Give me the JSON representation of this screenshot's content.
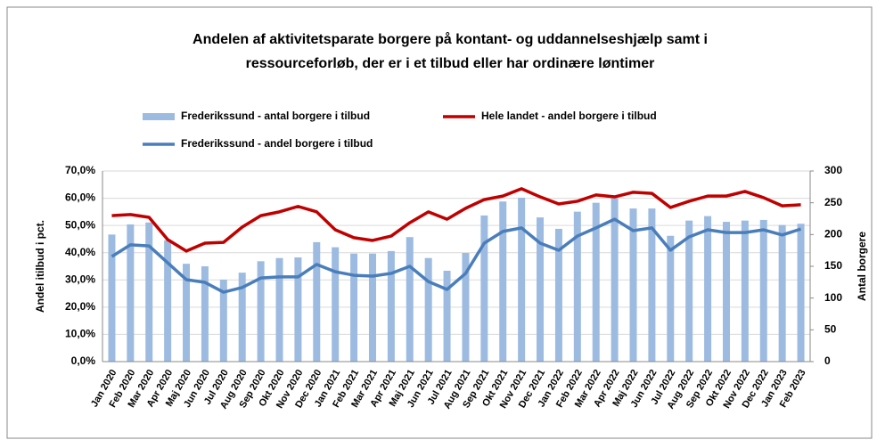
{
  "chart_data": {
    "type": "bar-line",
    "title": [
      "Andelen af aktivitetsparate borgere på kontant- og uddannelseshjælp samt i",
      "ressourceforløb, der er i et tilbud eller har ordinære løntimer"
    ],
    "ylabel": "Andel itilbud i pct.",
    "y2label": "Antal borgere",
    "categories": [
      "Jan 2020",
      "Feb 2020",
      "Mar 2020",
      "Apr 2020",
      "Maj 2020",
      "Jun 2020",
      "Jul 2020",
      "Aug 2020",
      "Sep 2020",
      "Okt 2020",
      "Nov 2020",
      "Dec 2020",
      "Jan 2021",
      "Feb 2021",
      "Mar 2021",
      "Apr 2021",
      "Maj 2021",
      "Jun 2021",
      "Jul 2021",
      "Aug 2021",
      "Sep 2021",
      "Okt 2021",
      "Nov 2021",
      "Dec 2021",
      "Jan 2022",
      "Feb 2022",
      "Mar 2022",
      "Apr 2022",
      "Maj 2022",
      "Jun 2022",
      "Jul 2022",
      "Aug 2022",
      "Sep 2022",
      "Okt 2022",
      "Nov 2022",
      "Dec 2022",
      "Jan 2023",
      "Feb 2023"
    ],
    "series": [
      {
        "name": "Frederikssund - antal borgere i tilbud",
        "type": "bar",
        "axis": "y2",
        "color": "#9dbbe0",
        "values": [
          200,
          216,
          219,
          191,
          154,
          150,
          129,
          140,
          158,
          163,
          164,
          188,
          180,
          170,
          170,
          174,
          196,
          163,
          143,
          171,
          230,
          252,
          258,
          227,
          209,
          236,
          250,
          257,
          241,
          241,
          198,
          222,
          229,
          220,
          222,
          223,
          215,
          217
        ]
      },
      {
        "name": "Hele landet - andel borgere i tilbud",
        "type": "line",
        "axis": "y",
        "color": "#c00000",
        "values": [
          53.6,
          54,
          53,
          44.8,
          40.6,
          43.5,
          43.8,
          49.4,
          53.6,
          55,
          57,
          55,
          48.4,
          45.5,
          44.5,
          46.1,
          51,
          55,
          52.3,
          56.3,
          59.5,
          60.8,
          63.5,
          60.5,
          57.9,
          58.9,
          61.2,
          60.5,
          62.2,
          61.8,
          56.6,
          58.9,
          60.8,
          60.8,
          62.5,
          60.2,
          57.2,
          57.6
        ]
      },
      {
        "name": "Frederikssund - andel borgere i tilbud",
        "type": "line",
        "axis": "y",
        "color": "#4a7ebb",
        "values": [
          38.6,
          42.9,
          42.5,
          36.3,
          30.1,
          29.1,
          25.5,
          27.2,
          30.7,
          31.1,
          31.1,
          35.7,
          33,
          31.7,
          31.4,
          32.4,
          35,
          29.4,
          26.5,
          32.4,
          43.5,
          47.8,
          49.1,
          43.5,
          40.9,
          46.1,
          49.1,
          52.3,
          48.1,
          49.1,
          40.9,
          45.8,
          48.4,
          47.4,
          47.4,
          48.4,
          46.5,
          48.7
        ]
      }
    ],
    "ylim": [
      0,
      70
    ],
    "yticks": [
      {
        "value": 0,
        "label": "0,0%"
      },
      {
        "value": 10,
        "label": "10,0%"
      },
      {
        "value": 20,
        "label": "20,0%"
      },
      {
        "value": 30,
        "label": "30,0%"
      },
      {
        "value": 40,
        "label": "40,0%"
      },
      {
        "value": 50,
        "label": "50,0%"
      },
      {
        "value": 60,
        "label": "60,0%"
      },
      {
        "value": 70,
        "label": "70,0%"
      }
    ],
    "y2lim": [
      0,
      300
    ],
    "y2ticks": [
      0,
      50,
      100,
      150,
      200,
      250,
      300
    ],
    "grid": true
  }
}
